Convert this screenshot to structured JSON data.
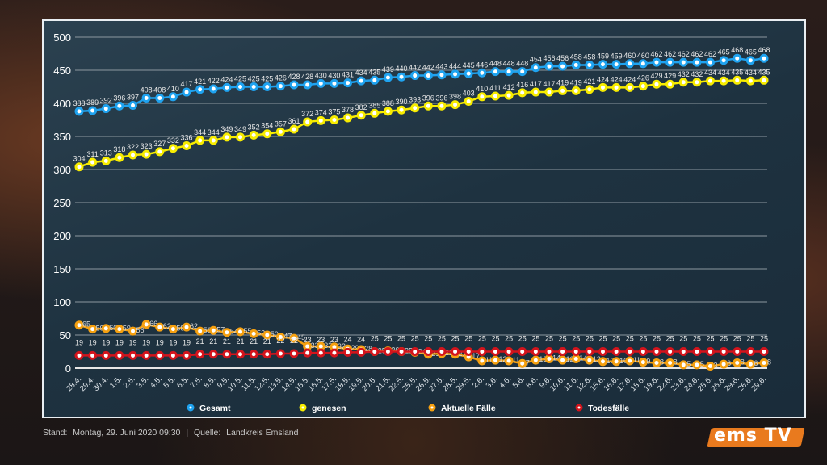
{
  "chart_data": {
    "type": "line",
    "ylim": [
      0,
      500
    ],
    "yticks": [
      0,
      50,
      100,
      150,
      200,
      250,
      300,
      350,
      400,
      450,
      500
    ],
    "grid": true,
    "legend_placement": "bottom",
    "categories": [
      "28.4.",
      "29.4.",
      "30.4.",
      "1.5.",
      "2.5.",
      "3.5.",
      "4.5.",
      "5.5.",
      "6.5.",
      "7.5.",
      "8.5.",
      "9.5.",
      "10.5.",
      "11.5.",
      "12.5.",
      "13.5.",
      "14.5.",
      "15.5.",
      "16.5.",
      "17.5.",
      "18.5.",
      "19.5.",
      "20.5.",
      "21.5.",
      "22.5.",
      "25.5.",
      "26.5.",
      "27.5.",
      "28.5.",
      "29.5.",
      "2.6.",
      "3.6.",
      "4.6.",
      "5.6.",
      "8.6.",
      "9.6.",
      "10.6.",
      "11.6.",
      "12.6.",
      "15.6.",
      "16.6.",
      "17.6.",
      "18.6.",
      "19.6.",
      "22.6.",
      "23.6.",
      "24.6.",
      "25.6.",
      "26.6.",
      "29.6.",
      "26.6.",
      "29.6."
    ],
    "series": [
      {
        "name": "Gesamt",
        "color": "#1fa3f0",
        "values": [
          388,
          389,
          392,
          396,
          397,
          408,
          408,
          410,
          417,
          421,
          422,
          424,
          425,
          425,
          425,
          426,
          428,
          428,
          430,
          430,
          431,
          434,
          435,
          439,
          440,
          442,
          442,
          443,
          444,
          445,
          446,
          448,
          448,
          448,
          454,
          456,
          456,
          458,
          458,
          459,
          459,
          460,
          460,
          462,
          462,
          462,
          462,
          462,
          465,
          468,
          465,
          468
        ]
      },
      {
        "name": "genesen",
        "color": "#f7ec00",
        "values": [
          304,
          311,
          313,
          318,
          322,
          323,
          327,
          332,
          336,
          344,
          344,
          349,
          349,
          352,
          354,
          357,
          361,
          372,
          374,
          375,
          378,
          382,
          385,
          388,
          390,
          393,
          396,
          396,
          398,
          403,
          410,
          411,
          412,
          416,
          417,
          417,
          419,
          419,
          421,
          424,
          424,
          424,
          426,
          429,
          429,
          432,
          432,
          434,
          434,
          435,
          434,
          435
        ]
      },
      {
        "name": "Aktuelle Fälle",
        "color": "#f5a010",
        "values": [
          65,
          59,
          60,
          59,
          56,
          66,
          62,
          59,
          62,
          56,
          57,
          54,
          55,
          52,
          50,
          47,
          45,
          33,
          33,
          32,
          29,
          28,
          25,
          26,
          25,
          24,
          21,
          22,
          21,
          17,
          11,
          12,
          11,
          7,
          12,
          14,
          12,
          14,
          12,
          10,
          10,
          11,
          9,
          8,
          8,
          5,
          5,
          3,
          6,
          8,
          6,
          8
        ]
      },
      {
        "name": "Todesfälle",
        "color": "#d4141c",
        "values": [
          19,
          19,
          19,
          19,
          19,
          19,
          19,
          19,
          19,
          21,
          21,
          21,
          21,
          21,
          21,
          22,
          22,
          23,
          23,
          23,
          24,
          24,
          25,
          25,
          25,
          25,
          25,
          25,
          25,
          25,
          25,
          25,
          25,
          25,
          25,
          25,
          25,
          25,
          25,
          25,
          25,
          25,
          25,
          25,
          25,
          25,
          25,
          25,
          25,
          25,
          25,
          25
        ]
      }
    ]
  },
  "footer": {
    "stand_label": "Stand:",
    "stand_value": "Montag, 29. Juni 2020 09:30",
    "separator": "|",
    "quelle_label": "Quelle:",
    "quelle_value": "Landkreis Emsland"
  },
  "logo": {
    "text": "ems TV",
    "color": "#e97a1e"
  }
}
